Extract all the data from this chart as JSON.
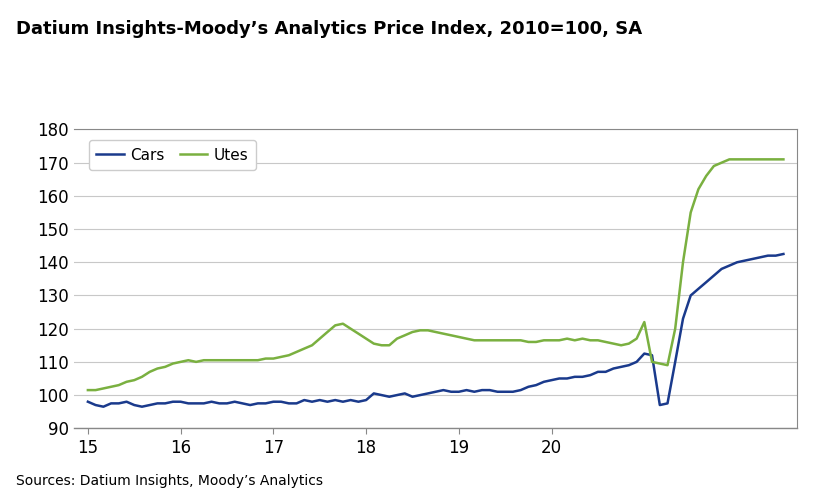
{
  "title": "Datium Insights-Moody’s Analytics Price Index, 2010=100, SA",
  "source_text": "Sources: Datium Insights, Moody’s Analytics",
  "cars_color": "#1a3a8c",
  "utes_color": "#7ab040",
  "line_width": 1.8,
  "ylim": [
    90,
    180
  ],
  "yticks": [
    90,
    100,
    110,
    120,
    130,
    140,
    150,
    160,
    170,
    180
  ],
  "xticks": [
    15,
    16,
    17,
    18,
    19,
    20
  ],
  "background_color": "#ffffff",
  "grid_color": "#c8c8c8",
  "cars_x": [
    15.0,
    15.083,
    15.167,
    15.25,
    15.333,
    15.417,
    15.5,
    15.583,
    15.667,
    15.75,
    15.833,
    15.917,
    16.0,
    16.083,
    16.167,
    16.25,
    16.333,
    16.417,
    16.5,
    16.583,
    16.667,
    16.75,
    16.833,
    16.917,
    17.0,
    17.083,
    17.167,
    17.25,
    17.333,
    17.417,
    17.5,
    17.583,
    17.667,
    17.75,
    17.833,
    17.917,
    18.0,
    18.083,
    18.167,
    18.25,
    18.333,
    18.417,
    18.5,
    18.583,
    18.667,
    18.75,
    18.833,
    18.917,
    19.0,
    19.083,
    19.167,
    19.25,
    19.333,
    19.417,
    19.5,
    19.583,
    19.667,
    19.75,
    19.833,
    19.917,
    20.0,
    20.083,
    20.167,
    20.25,
    20.333,
    20.417,
    20.5,
    20.583,
    20.667,
    20.75,
    20.833,
    20.917,
    21.0,
    21.083,
    21.167,
    21.25,
    21.333,
    21.417,
    21.5,
    21.583,
    21.667,
    21.75,
    21.833,
    21.917,
    22.0,
    22.083,
    22.167,
    22.25,
    22.333,
    22.417,
    22.5
  ],
  "cars_y": [
    98.0,
    97.0,
    96.5,
    97.5,
    97.5,
    98.0,
    97.0,
    96.5,
    97.0,
    97.5,
    97.5,
    98.0,
    98.0,
    97.5,
    97.5,
    97.5,
    98.0,
    97.5,
    97.5,
    98.0,
    97.5,
    97.0,
    97.5,
    97.5,
    98.0,
    98.0,
    97.5,
    97.5,
    98.5,
    98.0,
    98.5,
    98.0,
    98.5,
    98.0,
    98.5,
    98.0,
    98.5,
    100.5,
    100.0,
    99.5,
    100.0,
    100.5,
    99.5,
    100.0,
    100.5,
    101.0,
    101.5,
    101.0,
    101.0,
    101.5,
    101.0,
    101.5,
    101.5,
    101.0,
    101.0,
    101.0,
    101.5,
    102.5,
    103.0,
    104.0,
    104.5,
    105.0,
    105.0,
    105.5,
    105.5,
    106.0,
    107.0,
    107.0,
    108.0,
    108.5,
    109.0,
    110.0,
    112.5,
    112.0,
    97.0,
    97.5,
    110.0,
    123.0,
    130.0,
    132.0,
    134.0,
    136.0,
    138.0,
    139.0,
    140.0,
    140.5,
    141.0,
    141.5,
    142.0,
    142.0,
    142.5
  ],
  "utes_x": [
    15.0,
    15.083,
    15.167,
    15.25,
    15.333,
    15.417,
    15.5,
    15.583,
    15.667,
    15.75,
    15.833,
    15.917,
    16.0,
    16.083,
    16.167,
    16.25,
    16.333,
    16.417,
    16.5,
    16.583,
    16.667,
    16.75,
    16.833,
    16.917,
    17.0,
    17.083,
    17.167,
    17.25,
    17.333,
    17.417,
    17.5,
    17.583,
    17.667,
    17.75,
    17.833,
    17.917,
    18.0,
    18.083,
    18.167,
    18.25,
    18.333,
    18.417,
    18.5,
    18.583,
    18.667,
    18.75,
    18.833,
    18.917,
    19.0,
    19.083,
    19.167,
    19.25,
    19.333,
    19.417,
    19.5,
    19.583,
    19.667,
    19.75,
    19.833,
    19.917,
    20.0,
    20.083,
    20.167,
    20.25,
    20.333,
    20.417,
    20.5,
    20.583,
    20.667,
    20.75,
    20.833,
    20.917,
    21.0,
    21.083,
    21.167,
    21.25,
    21.333,
    21.417,
    21.5,
    21.583,
    21.667,
    21.75,
    21.833,
    21.917,
    22.0,
    22.083,
    22.167,
    22.25,
    22.333,
    22.417,
    22.5
  ],
  "utes_y": [
    101.5,
    101.5,
    102.0,
    102.5,
    103.0,
    104.0,
    104.5,
    105.5,
    107.0,
    108.0,
    108.5,
    109.5,
    110.0,
    110.5,
    110.0,
    110.5,
    110.5,
    110.5,
    110.5,
    110.5,
    110.5,
    110.5,
    110.5,
    111.0,
    111.0,
    111.5,
    112.0,
    113.0,
    114.0,
    115.0,
    117.0,
    119.0,
    121.0,
    121.5,
    120.0,
    118.5,
    117.0,
    115.5,
    115.0,
    115.0,
    117.0,
    118.0,
    119.0,
    119.5,
    119.5,
    119.0,
    118.5,
    118.0,
    117.5,
    117.0,
    116.5,
    116.5,
    116.5,
    116.5,
    116.5,
    116.5,
    116.5,
    116.0,
    116.0,
    116.5,
    116.5,
    116.5,
    117.0,
    116.5,
    117.0,
    116.5,
    116.5,
    116.0,
    115.5,
    115.0,
    115.5,
    117.0,
    122.0,
    110.0,
    109.5,
    109.0,
    120.0,
    140.0,
    155.0,
    162.0,
    166.0,
    169.0,
    170.0,
    171.0,
    171.0,
    171.0,
    171.0,
    171.0,
    171.0,
    171.0,
    171.0
  ],
  "legend_labels": [
    "Cars",
    "Utes"
  ],
  "xlim": [
    14.85,
    22.65
  ]
}
